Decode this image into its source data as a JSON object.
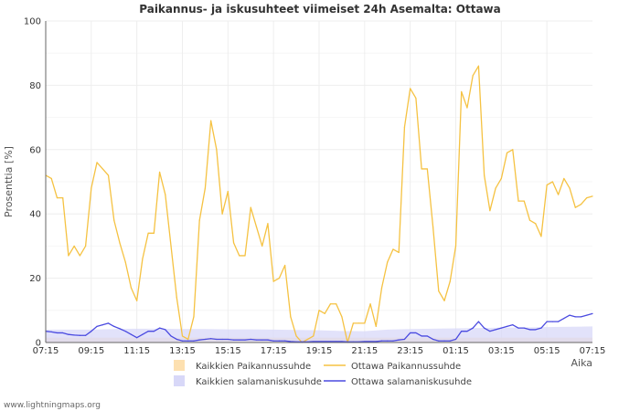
{
  "chart_data": {
    "type": "line",
    "title": "Paikannus- ja iskusuhteet viimeiset 24h Asemalta: Ottawa",
    "ylabel": "Prosenttia   [%]",
    "xlabel": "Aika",
    "ylim": [
      0,
      100
    ],
    "y_ticks": [
      0,
      20,
      40,
      60,
      80,
      100
    ],
    "x_ticks": [
      "07:15",
      "09:15",
      "11:15",
      "13:15",
      "15:15",
      "17:15",
      "19:15",
      "21:15",
      "23:15",
      "01:15",
      "03:15",
      "05:15",
      "07:15"
    ],
    "x_range_hours": [
      0,
      24
    ],
    "series": [
      {
        "name": "Kaikkien Paikannussuhde",
        "kind": "area",
        "color": "#fde0b0",
        "x": [
          0,
          6,
          12,
          18,
          24
        ],
        "values": [
          1.5,
          1.5,
          1.5,
          1.5,
          1.5
        ]
      },
      {
        "name": "Kaikkien salamaniskusuhde",
        "kind": "area",
        "color": "#d8d8f8",
        "x": [
          0,
          1,
          2,
          3,
          4,
          5,
          6,
          7,
          8,
          9,
          10,
          11,
          12,
          13,
          14,
          15,
          16,
          17,
          18,
          19,
          20,
          21,
          22,
          23,
          24
        ],
        "values": [
          4,
          4,
          4,
          4.2,
          4.3,
          4.3,
          4.2,
          4.2,
          4.1,
          4.1,
          4,
          3.9,
          3.8,
          3.6,
          3.5,
          4,
          4.2,
          4.3,
          4.4,
          4.5,
          4.6,
          4.7,
          4.8,
          4.9,
          5
        ]
      },
      {
        "name": "Ottawa Paikannussuhde",
        "kind": "line",
        "color": "#f5c242",
        "x": [
          0,
          0.25,
          0.5,
          0.75,
          1.0,
          1.25,
          1.5,
          1.75,
          2.0,
          2.25,
          2.5,
          2.75,
          3.0,
          3.25,
          3.5,
          3.75,
          4.0,
          4.25,
          4.5,
          4.75,
          5.0,
          5.25,
          5.5,
          5.75,
          6.0,
          6.25,
          6.5,
          6.75,
          7.0,
          7.25,
          7.5,
          7.75,
          8.0,
          8.25,
          8.5,
          8.75,
          9.0,
          9.25,
          9.5,
          9.75,
          10.0,
          10.25,
          10.5,
          10.75,
          11.0,
          11.25,
          11.5,
          11.75,
          12.0,
          12.25,
          12.5,
          12.75,
          13.0,
          13.25,
          13.5,
          13.75,
          14.0,
          14.25,
          14.5,
          14.75,
          15.0,
          15.25,
          15.5,
          15.75,
          16.0,
          16.25,
          16.5,
          16.75,
          17.0,
          17.25,
          17.5,
          17.75,
          18.0,
          18.25,
          18.5,
          18.75,
          19.0,
          19.25,
          19.5,
          19.75,
          20.0,
          20.25,
          20.5,
          20.75,
          21.0,
          21.25,
          21.5,
          21.75,
          22.0,
          22.25,
          22.5,
          22.75,
          23.0,
          23.25,
          23.5,
          23.75,
          24.0
        ],
        "values": [
          52,
          51,
          45,
          45,
          27,
          30,
          27,
          30,
          48,
          56,
          54,
          52,
          38,
          31,
          25,
          17,
          13,
          26,
          34,
          34,
          53,
          46,
          30,
          14,
          2,
          1,
          8,
          38,
          48,
          69,
          60,
          40,
          47,
          31,
          27,
          27,
          42,
          36,
          30,
          37,
          19,
          20,
          24,
          8,
          2,
          0,
          1,
          2,
          10,
          9,
          12,
          12,
          8,
          0,
          6,
          6,
          6,
          12,
          5,
          17,
          25,
          29,
          28,
          67,
          79,
          76,
          54,
          54,
          36,
          16,
          13,
          19,
          30,
          78,
          73,
          83,
          86,
          52,
          41,
          48,
          51,
          59,
          60,
          44,
          44,
          38,
          37,
          33,
          49,
          50,
          46,
          51,
          48,
          42,
          43,
          45,
          45.5
        ]
      },
      {
        "name": "Ottawa salamaniskusuhde",
        "kind": "line",
        "color": "#4a4ae0",
        "x": [
          0,
          0.25,
          0.5,
          0.75,
          1.0,
          1.25,
          1.5,
          1.75,
          2.0,
          2.25,
          2.5,
          2.75,
          3.0,
          3.25,
          3.5,
          3.75,
          4.0,
          4.25,
          4.5,
          4.75,
          5.0,
          5.25,
          5.5,
          5.75,
          6.0,
          6.25,
          6.5,
          6.75,
          7.0,
          7.25,
          7.5,
          7.75,
          8.0,
          8.25,
          8.5,
          8.75,
          9.0,
          9.25,
          9.5,
          9.75,
          10.0,
          10.25,
          10.5,
          10.75,
          11.0,
          11.25,
          11.5,
          11.75,
          12.0,
          12.25,
          12.5,
          12.75,
          13.0,
          13.25,
          13.5,
          13.75,
          14.0,
          14.25,
          14.5,
          14.75,
          15.0,
          15.25,
          15.5,
          15.75,
          16.0,
          16.25,
          16.5,
          16.75,
          17.0,
          17.25,
          17.5,
          17.75,
          18.0,
          18.25,
          18.5,
          18.75,
          19.0,
          19.25,
          19.5,
          19.75,
          20.0,
          20.25,
          20.5,
          20.75,
          21.0,
          21.25,
          21.5,
          21.75,
          22.0,
          22.25,
          22.5,
          22.75,
          23.0,
          23.25,
          23.5,
          23.75,
          24.0
        ],
        "values": [
          3.5,
          3.3,
          3,
          3,
          2.5,
          2.3,
          2.2,
          2.2,
          3.5,
          5,
          5.5,
          6,
          5,
          4.3,
          3.5,
          2.5,
          1.5,
          2.5,
          3.5,
          3.5,
          4.5,
          4,
          2,
          1,
          0.5,
          0.5,
          0.5,
          0.8,
          1,
          1.2,
          1,
          1,
          1,
          0.8,
          0.8,
          0.8,
          1,
          0.8,
          0.8,
          0.8,
          0.5,
          0.5,
          0.5,
          0.3,
          0.2,
          0.2,
          0.2,
          0.3,
          0.3,
          0.3,
          0.3,
          0.3,
          0.3,
          0.2,
          0.2,
          0.2,
          0.3,
          0.3,
          0.3,
          0.5,
          0.5,
          0.5,
          0.8,
          1,
          3,
          3,
          2,
          2,
          1,
          0.5,
          0.5,
          0.5,
          1,
          3.5,
          3.5,
          4.5,
          6.5,
          4.5,
          3.5,
          4,
          4.5,
          5,
          5.5,
          4.5,
          4.5,
          4,
          4,
          4.5,
          6.5,
          6.5,
          6.5,
          7.5,
          8.5,
          8,
          8,
          8.5,
          9
        ]
      }
    ]
  },
  "footer": "www.lightningmaps.org"
}
